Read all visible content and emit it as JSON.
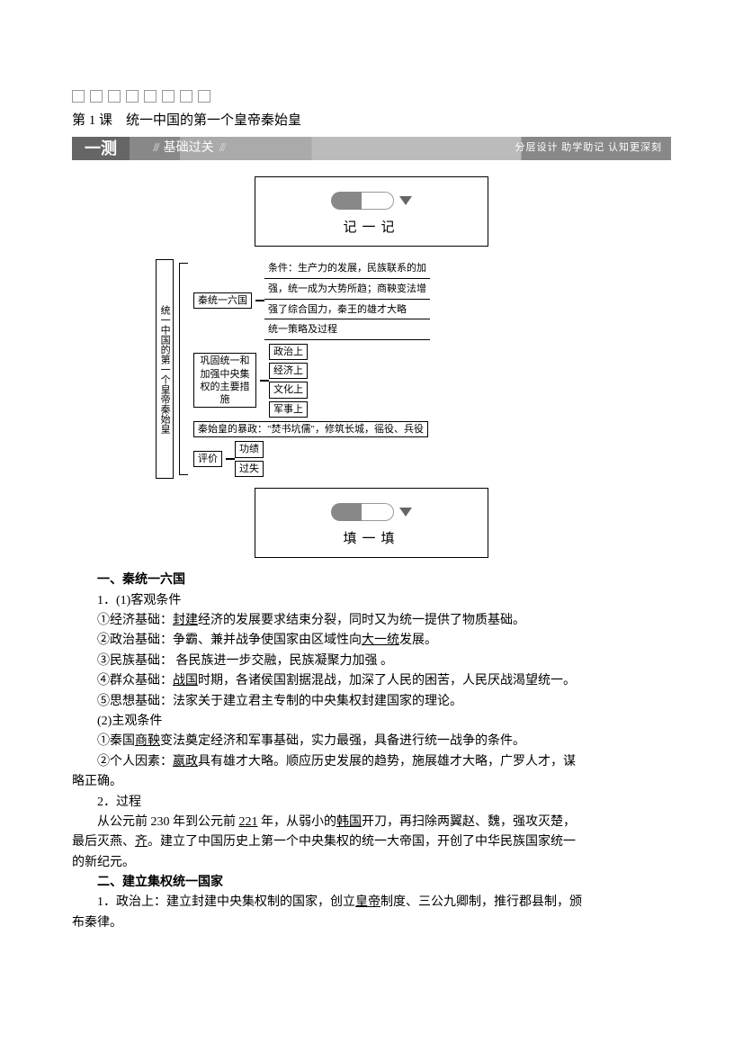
{
  "lesson_title": "第 1 课　统一中国的第一个皇帝秦始皇",
  "banner": {
    "left": "一测",
    "mid": "基础过关",
    "right": "分层设计 助学助记 认知更深刻"
  },
  "box1_label": "记一记",
  "box2_label": "填一填",
  "diagram": {
    "root": "统一中国的第一个皇帝秦始皇",
    "n1": "秦统一六国",
    "n1_leaves": [
      "条件：生产力的发展，民族联系的加",
      "强，统一成为大势所趋；商鞅变法增",
      "强了综合国力，秦王的雄才大略",
      "统一策略及过程"
    ],
    "n2": "巩固统一和加强中央集权的主要措施",
    "n2_leaves": [
      "政治上",
      "经济上",
      "文化上",
      "军事上"
    ],
    "n3": "秦始皇的暴政：\"焚书坑儒\"，修筑长城，徭役、兵役",
    "n4": "评价",
    "n4_leaves": [
      "功绩",
      "过失"
    ]
  },
  "content": {
    "s1_title": "一、秦统一六国",
    "s1_1": "1．(1)客观条件",
    "s1_1_1a": "①经济基础：",
    "s1_1_1b": "封建",
    "s1_1_1c": "经济的发展要求结束分裂，同时又为统一提供了物质基础。",
    "s1_1_2a": "②政治基础：争霸、兼并战争使国家由区域性向",
    "s1_1_2b": "大一统",
    "s1_1_2c": "发展。",
    "s1_1_3": "③民族基础： 各民族进一步交融，民族凝聚力加强 。",
    "s1_1_4a": "④群众基础：",
    "s1_1_4b": "战国",
    "s1_1_4c": "时期，各诸侯国割据混战，加深了人民的困苦，人民厌战渴望统一。",
    "s1_1_5": "⑤思想基础：法家关于建立君主专制的中央集权封建国家的理论。",
    "s1_2": "(2)主观条件",
    "s1_2_1a": "①秦国",
    "s1_2_1b": "商鞅",
    "s1_2_1c": "变法奠定经济和军事基础，实力最强，具备进行统一战争的条件。",
    "s1_2_2a": "②个人因素：",
    "s1_2_2b": "嬴政",
    "s1_2_2c": "具有雄才大略。顺应历史发展的趋势，施展雄才大略，广罗人才，谋",
    "s1_2_2d": "略正确。",
    "s1_3": "2．过程",
    "s1_3_1a": "从公元前 230 年到公元前 ",
    "s1_3_1b": "221",
    "s1_3_1c": " 年，从弱小的",
    "s1_3_1d": "韩国",
    "s1_3_1e": "开刀，再扫除两翼赵、魏，强攻灭楚，",
    "s1_3_2a": "最后灭燕、",
    "s1_3_2b": "齐",
    "s1_3_2c": "。建立了中国历史上第一个中央集权的统一大帝国，开创了中华民族国家统一",
    "s1_3_3": "的新纪元。",
    "s2_title": "二、建立集权统一国家",
    "s2_1a": "1．政治上：建立封建中央集权制的国家，创立",
    "s2_1b": "皇帝",
    "s2_1c": "制度、三公九卿制，推行郡县制，颁",
    "s2_2": "布秦律。"
  }
}
